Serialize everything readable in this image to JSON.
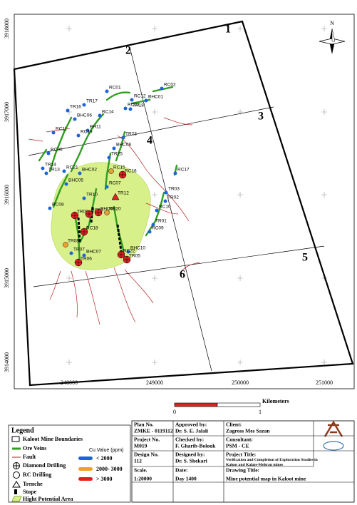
{
  "north": "N",
  "northing_labels": [
    "3918000",
    "3917000",
    "3916000",
    "3915000",
    "3914000"
  ],
  "easting_labels": [
    "248000",
    "249000",
    "250000",
    "251000"
  ],
  "zones": [
    "1",
    "2",
    "3",
    "4",
    "5",
    "6"
  ],
  "samples": [
    "RC01",
    "RC02",
    "RC12",
    "BHC01",
    "RC03",
    "TR17",
    "TR16",
    "TR18",
    "BHC06",
    "RC14",
    "BH11",
    "RC11",
    "RC19",
    "TR23",
    "RC05",
    "BHC08",
    "TR14",
    "TR13",
    "TR25",
    "RC21",
    "BHC02",
    "RC15",
    "RC16",
    "RC17",
    "BHC05",
    "RC07",
    "TR12",
    "TR03",
    "TR10",
    "TR02",
    "RC08",
    "TR09",
    "RC06",
    "BHC09",
    "RC10",
    "RC20",
    "RC18",
    "TR01",
    "RC09",
    "TR08",
    "BHC10",
    "TR07",
    "BHC07",
    "RC22",
    "TR05",
    "TR06"
  ],
  "scale_bar": {
    "unit": "Kilometers",
    "ticks": [
      "0",
      "1"
    ]
  },
  "legend": {
    "title": "Legend",
    "items": [
      "Kaloot Mine Boundaries",
      "Ore Veins",
      "Fault",
      "Diamond Drilling",
      "RC Drilling",
      "Trenche",
      "Stope",
      "Hight Potential Area"
    ],
    "cu_title": "Cu Value (ppm)",
    "cu_classes": [
      "< 2000",
      "2000- 3000",
      "> 3000"
    ]
  },
  "title_block": {
    "cells": [
      [
        "Plan No.",
        "ZMKE - 0119112"
      ],
      [
        "Approved by:",
        "Dr. S. E. Jalali"
      ],
      [
        "Client:",
        "Zagross Mes Sazan"
      ],
      [
        "Project No.",
        "M019"
      ],
      [
        "Checked by:",
        "F. Gharib-Bolouk"
      ],
      [
        "Consultant:",
        "PSM - CE"
      ],
      [
        "Design No.",
        "112"
      ],
      [
        "Designed by:",
        "Dr. S. Shekari"
      ],
      [
        "Project Title:",
        "Verification and Completion of Exploration Studies in Kaloot and Kalate-Mehran mines"
      ],
      [
        "Scale.",
        "1:20000"
      ],
      [
        "Date:",
        "Day 1400"
      ],
      [
        "Drawing Title:",
        "Mine potential map in Kaloot mine"
      ]
    ]
  }
}
